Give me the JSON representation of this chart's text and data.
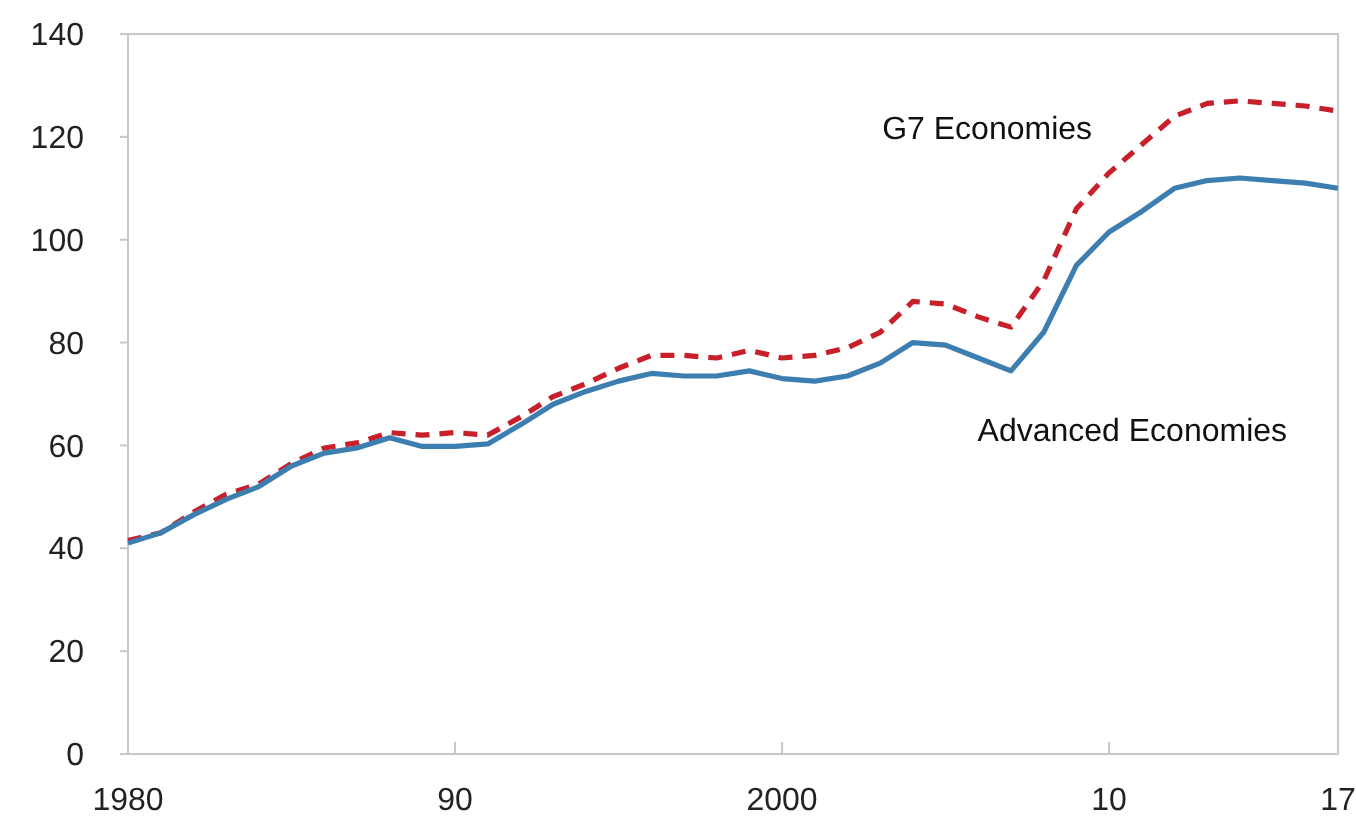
{
  "chart_data": {
    "type": "line",
    "x": [
      1980,
      1981,
      1982,
      1983,
      1984,
      1985,
      1986,
      1987,
      1988,
      1989,
      1990,
      1991,
      1992,
      1993,
      1994,
      1995,
      1996,
      1997,
      1998,
      1999,
      2000,
      2001,
      2002,
      2003,
      2004,
      2005,
      2006,
      2007,
      2008,
      2009,
      2010,
      2011,
      2012,
      2013,
      2014,
      2015,
      2016,
      2017
    ],
    "series": [
      {
        "name": "G7 Economies",
        "color": "#c8202a",
        "line_style": "dashed",
        "values": [
          41.5,
          43,
          47,
          50.5,
          52.5,
          56.5,
          59.5,
          60.5,
          62.5,
          62,
          62.5,
          62,
          65.5,
          69.5,
          72,
          75,
          77.5,
          77.5,
          77,
          78.5,
          77,
          77.5,
          79,
          82,
          88,
          87.5,
          85,
          83,
          92,
          106,
          113,
          118.5,
          124,
          126.5,
          127,
          126.5,
          126,
          125
        ]
      },
      {
        "name": "Advanced Economies",
        "color": "#3d7eb0",
        "line_style": "solid",
        "values": [
          41,
          43,
          46.5,
          49.5,
          52,
          56,
          58.5,
          59.5,
          61.5,
          59.8,
          59.8,
          60.3,
          64,
          68,
          70.5,
          72.5,
          74,
          73.5,
          73.5,
          74.5,
          73,
          72.5,
          73.5,
          76,
          80,
          79.5,
          77,
          74.5,
          82,
          95,
          101.5,
          105.5,
          110,
          111.5,
          112,
          111.5,
          111,
          110
        ]
      }
    ],
    "xlim": [
      1980,
      2017
    ],
    "xticks": [
      1980,
      {
        "value": 1990,
        "label": "90"
      },
      2000,
      {
        "value": 2010,
        "label": "10"
      },
      {
        "value": 2017,
        "label": "17"
      }
    ],
    "ylim": [
      0,
      140
    ],
    "yticks": [
      0,
      20,
      40,
      60,
      80,
      100,
      120,
      140
    ],
    "legend": false
  }
}
